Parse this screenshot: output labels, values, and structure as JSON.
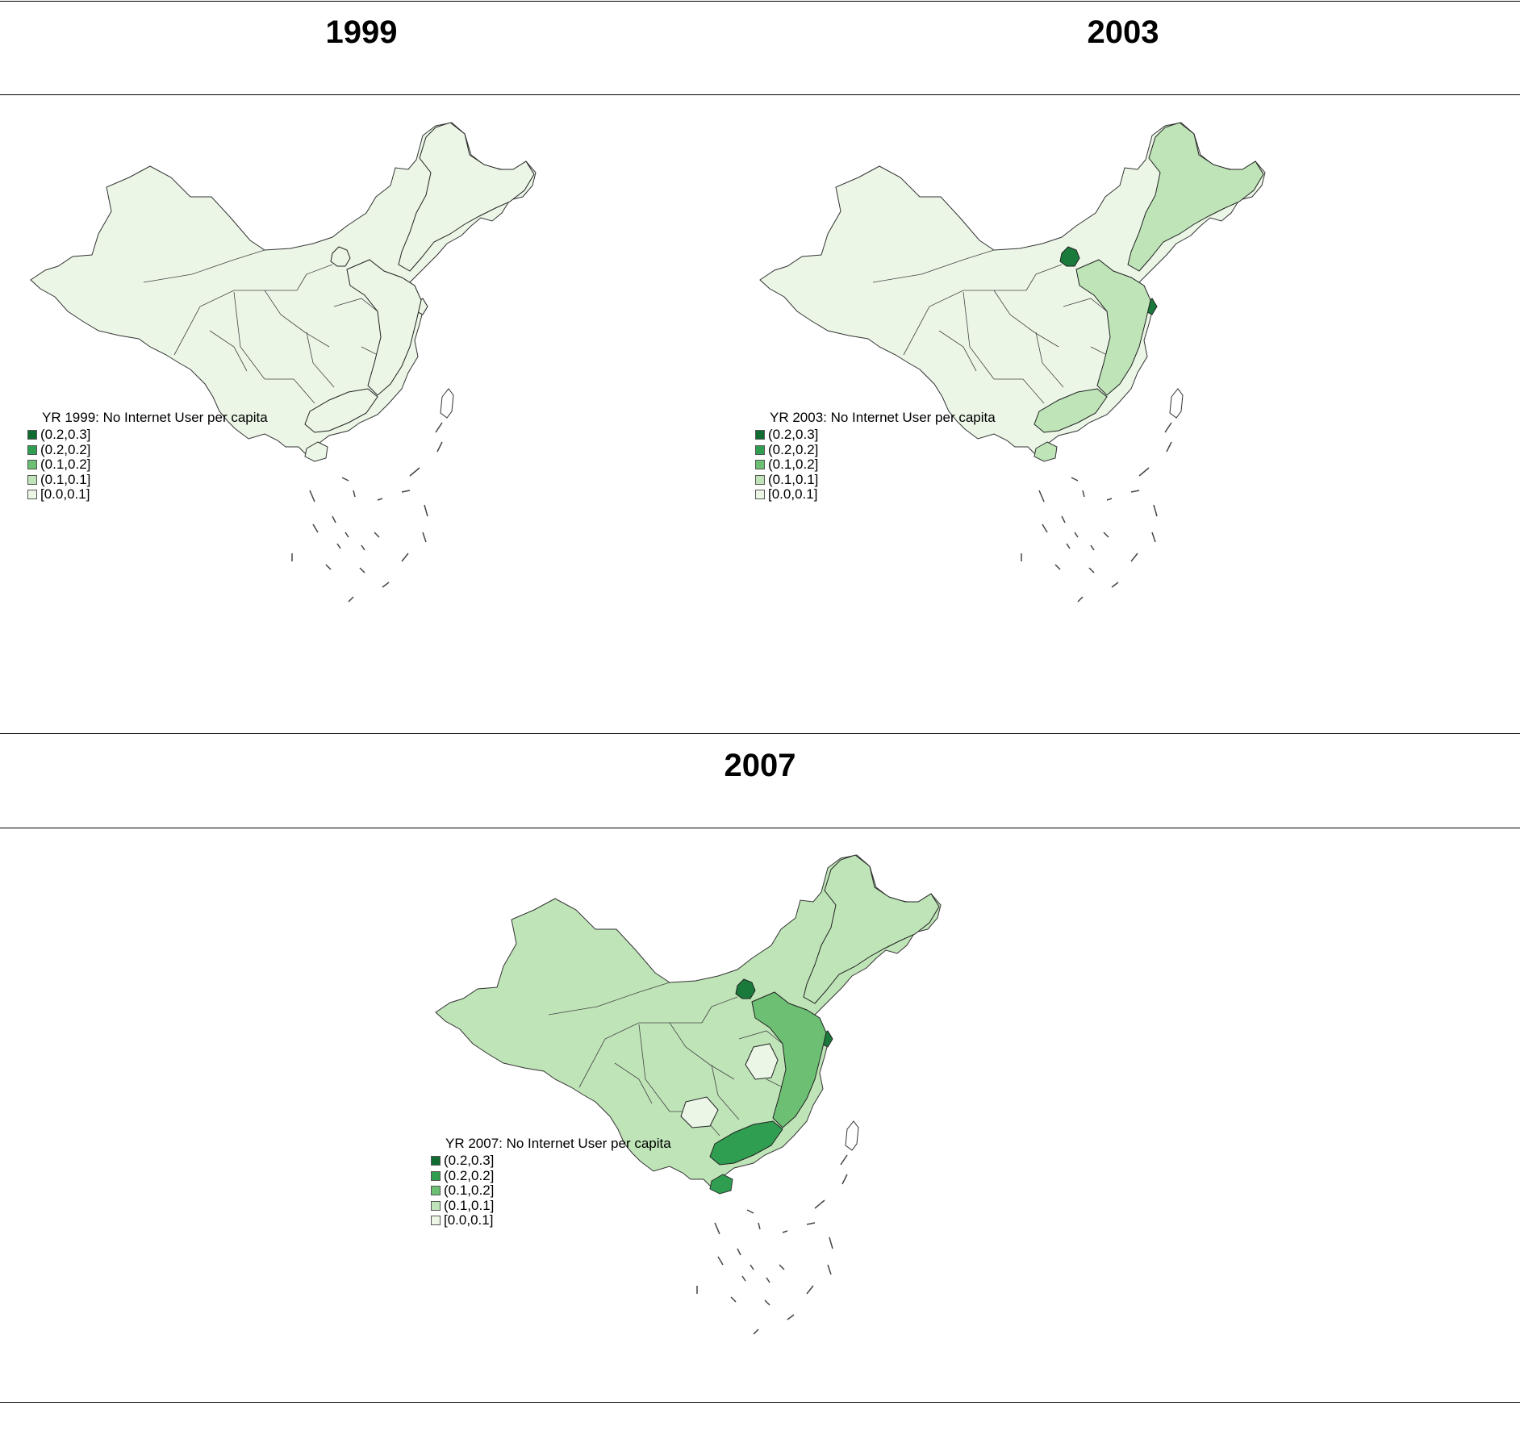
{
  "figure": {
    "panels": [
      {
        "year_title": "1999",
        "legend_title": "YR 1999: No Internet User per capita",
        "province_fill": {
          "beijing": "#ebf6e7",
          "shanghai": "#ebf6e7",
          "coastal_east": "#ebf6e7",
          "guangdong": "#ebf6e7",
          "northeast": "#ebf6e7",
          "rest": "#ebf6e7"
        }
      },
      {
        "year_title": "2003",
        "legend_title": "YR 2003: No Internet User per capita",
        "province_fill": {
          "beijing": "#1a7a3c",
          "shanghai": "#1a7a3c",
          "coastal_east": "#bfe4b8",
          "guangdong": "#bfe4b8",
          "northeast": "#bfe4b8",
          "rest": "#ebf6e7"
        }
      },
      {
        "year_title": "2007",
        "legend_title": "YR 2007: No Internet User per capita",
        "province_fill": {
          "beijing": "#1a7a3c",
          "shanghai": "#1a7a3c",
          "coastal_east": "#6dbf74",
          "guangdong": "#2f9e50",
          "northeast": "#bfe4b8",
          "rest": "#bfe4b8",
          "low_pockets": "#ebf6e7"
        }
      }
    ],
    "legend_classes": [
      {
        "label": "(0.2,0.3]",
        "color": "#0f6b2f"
      },
      {
        "label": "(0.2,0.2]",
        "color": "#2f9e50"
      },
      {
        "label": "(0.1,0.2]",
        "color": "#6dbf74"
      },
      {
        "label": "(0.1,0.1]",
        "color": "#bfe4b8"
      },
      {
        "label": "[0.0,0.1]",
        "color": "#ebf6e7"
      }
    ]
  }
}
